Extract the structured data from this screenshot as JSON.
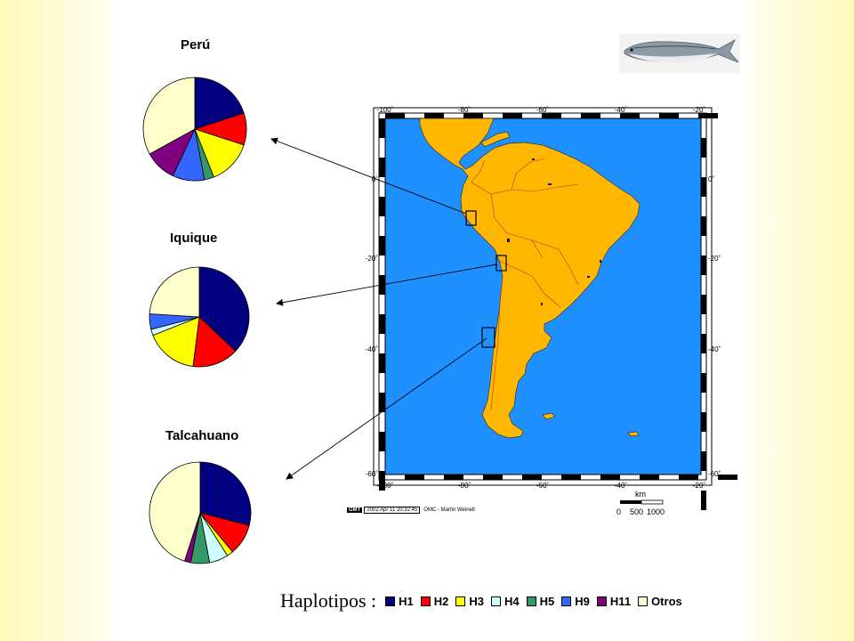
{
  "chart_data": [
    {
      "type": "pie",
      "title": "Perú",
      "slices": [
        {
          "label": "H1",
          "value": 20,
          "color": "#000080"
        },
        {
          "label": "H2",
          "value": 10,
          "color": "#ff0000"
        },
        {
          "label": "H3",
          "value": 14,
          "color": "#ffff00"
        },
        {
          "label": "H5",
          "value": 3,
          "color": "#339966"
        },
        {
          "label": "H9",
          "value": 10,
          "color": "#3366ff"
        },
        {
          "label": "H11",
          "value": 10,
          "color": "#800080"
        },
        {
          "label": "Otros",
          "value": 33,
          "color": "#ffffcc"
        }
      ]
    },
    {
      "type": "pie",
      "title": "Iquique",
      "slices": [
        {
          "label": "H1",
          "value": 37,
          "color": "#000080"
        },
        {
          "label": "H2",
          "value": 15,
          "color": "#ff0000"
        },
        {
          "label": "H3",
          "value": 17,
          "color": "#ffff00"
        },
        {
          "label": "H4",
          "value": 2,
          "color": "#ccffff"
        },
        {
          "label": "H9",
          "value": 5,
          "color": "#3366ff"
        },
        {
          "label": "Otros",
          "value": 24,
          "color": "#ffffcc"
        }
      ]
    },
    {
      "type": "pie",
      "title": "Talcahuano",
      "slices": [
        {
          "label": "H1",
          "value": 29,
          "color": "#000080"
        },
        {
          "label": "H2",
          "value": 10,
          "color": "#ff0000"
        },
        {
          "label": "H3",
          "value": 2,
          "color": "#ffff00"
        },
        {
          "label": "H4",
          "value": 6,
          "color": "#ccffff"
        },
        {
          "label": "H5",
          "value": 6,
          "color": "#339966"
        },
        {
          "label": "H11",
          "value": 2,
          "color": "#800080"
        },
        {
          "label": "Otros",
          "value": 45,
          "color": "#ffffcc"
        }
      ]
    }
  ],
  "legend": {
    "title": "Haplotipos :",
    "items": [
      {
        "label": "H1",
        "color": "#000080"
      },
      {
        "label": "H2",
        "color": "#ff0000"
      },
      {
        "label": "H3",
        "color": "#ffff00"
      },
      {
        "label": "H4",
        "color": "#ccffff"
      },
      {
        "label": "H5",
        "color": "#339966"
      },
      {
        "label": "H9",
        "color": "#3366ff"
      },
      {
        "label": "H11",
        "color": "#800080"
      },
      {
        "label": "Otros",
        "color": "#ffffcc"
      }
    ]
  },
  "map": {
    "lon_ticks": [
      "-100˚",
      "-80˚",
      "-60˚",
      "-40˚",
      "-20˚"
    ],
    "lat_ticks": [
      "0˚",
      "-20˚",
      "-40˚",
      "-60˚"
    ],
    "ocean_color": "#1e90ff",
    "land_color": "#ffb700",
    "gmt_logo": "GMT",
    "gmt_date": "2002 Apr 11 20:32:45",
    "gmt_credit": "OMC - Martin Weinelt",
    "scale_unit": "km",
    "scale_labels": [
      "0",
      "500",
      "1000"
    ]
  }
}
